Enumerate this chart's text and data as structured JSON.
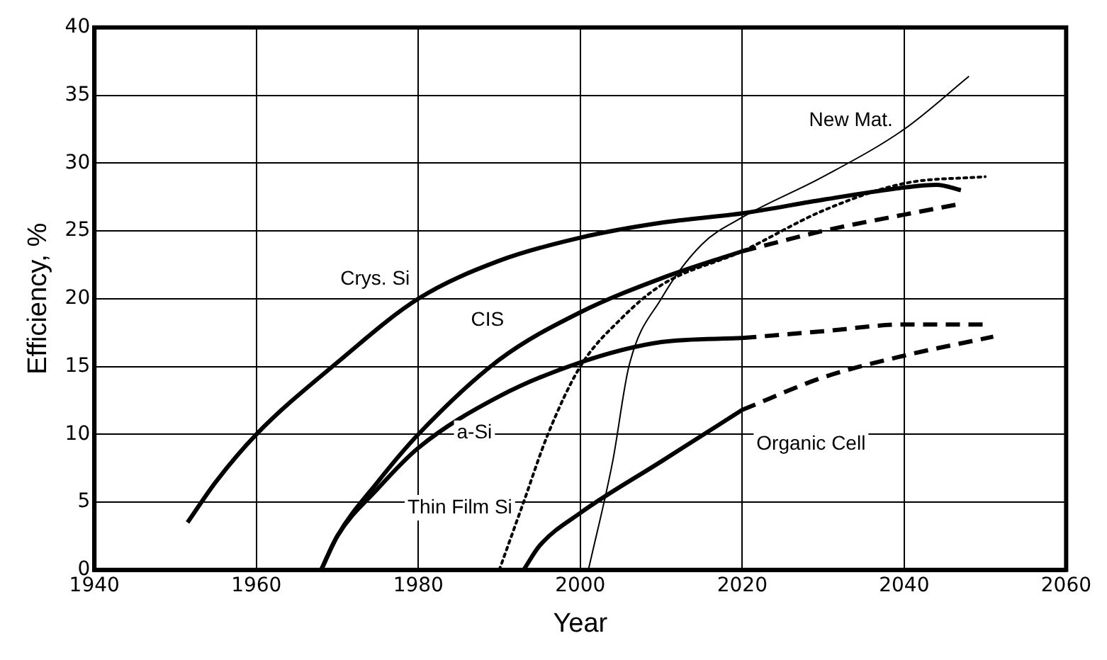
{
  "chart_data": {
    "type": "line",
    "xlabel": "Year",
    "ylabel": "Efficiency, %",
    "xlim": [
      1940,
      2060
    ],
    "xticks": [
      1940,
      1960,
      1980,
      2000,
      2020,
      2040,
      2060
    ],
    "ylim": [
      0,
      40
    ],
    "yticks": [
      0,
      5,
      10,
      15,
      20,
      25,
      30,
      35,
      40
    ],
    "grid": true,
    "legend": false,
    "marker": "none",
    "series": [
      {
        "name": "Crys. Si",
        "color": "#000000",
        "line_style": "solid",
        "x": [
          1951.5,
          1955,
          1960,
          1970,
          1980,
          1990,
          2000,
          2010,
          2020,
          2030,
          2040,
          2044,
          2047
        ],
        "values": [
          3.5,
          6.5,
          10,
          15.3,
          20,
          22.8,
          24.5,
          25.6,
          26.3,
          27.3,
          28.2,
          28.4,
          28
        ]
      },
      {
        "name": "CIS",
        "color": "#000000",
        "line_style": "solid",
        "x": [
          1968,
          1970,
          1975,
          1980,
          1990,
          2000,
          2010,
          2020
        ],
        "values": [
          0,
          2.5,
          6.5,
          10,
          15.5,
          19,
          21.5,
          23.5
        ]
      },
      {
        "color": "#000000",
        "line_style": "dashed",
        "x": [
          2020,
          2030,
          2040,
          2047
        ],
        "values": [
          23.5,
          25,
          26.2,
          27
        ]
      },
      {
        "name": "a-Si",
        "color": "#000000",
        "line_style": "solid",
        "x": [
          1968,
          1970,
          1975,
          1980,
          1990,
          2000,
          2010,
          2020
        ],
        "values": [
          0,
          2.5,
          6,
          9,
          12.8,
          15.3,
          16.8,
          17.1
        ]
      },
      {
        "color": "#000000",
        "line_style": "dashed",
        "x": [
          2020,
          2030,
          2040,
          2050
        ],
        "values": [
          17.1,
          17.6,
          18.1,
          18.1
        ]
      },
      {
        "name": "Thin Film Si",
        "color": "#000000",
        "line_style": "dotted",
        "x": [
          1990,
          1993,
          1996,
          2000,
          2005,
          2010,
          2020,
          2030,
          2040,
          2050
        ],
        "values": [
          0,
          5,
          10,
          15,
          18.5,
          21,
          23.5,
          26.5,
          28.5,
          29
        ]
      },
      {
        "name": "Organic Cell",
        "color": "#000000",
        "line_style": "solid",
        "x": [
          1993,
          1995,
          2000,
          2010,
          2020
        ],
        "values": [
          0,
          1.8,
          4.2,
          8,
          11.8
        ]
      },
      {
        "color": "#000000",
        "line_style": "dashed",
        "x": [
          2020,
          2030,
          2040,
          2051
        ],
        "values": [
          11.8,
          14.2,
          15.8,
          17.2
        ]
      },
      {
        "name": "New Mat.",
        "color": "#000000",
        "line_style": "solid",
        "x": [
          2001,
          2004,
          2006,
          2010,
          2015,
          2020,
          2030,
          2040,
          2048
        ],
        "values": [
          0,
          8,
          15,
          20,
          24,
          26,
          29,
          32.5,
          36.4
        ]
      }
    ]
  }
}
